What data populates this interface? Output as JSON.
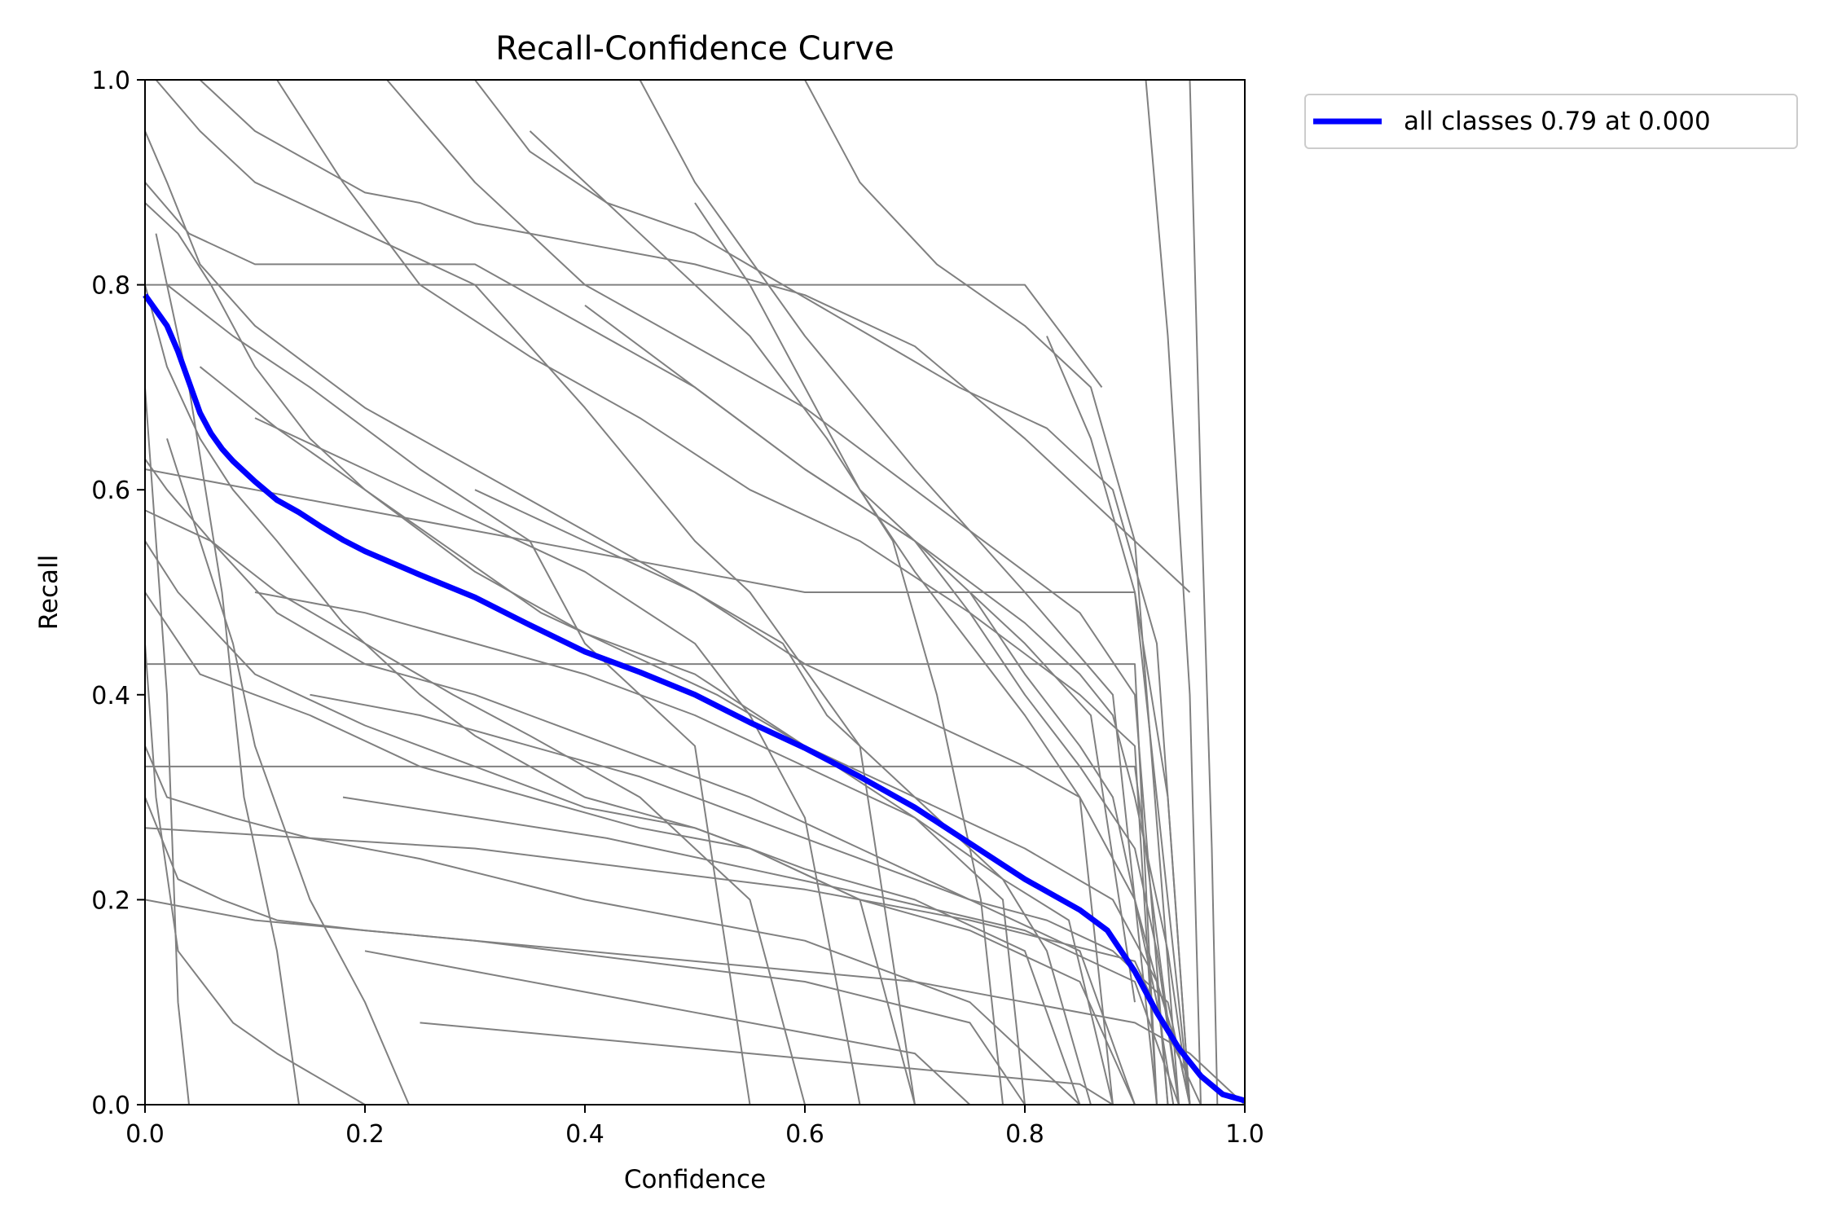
{
  "chart_data": {
    "type": "line",
    "title": "Recall-Confidence Curve",
    "xlabel": "Confidence",
    "ylabel": "Recall",
    "xlim": [
      0,
      1
    ],
    "ylim": [
      0,
      1
    ],
    "x_ticks": [
      "0.0",
      "0.2",
      "0.4",
      "0.6",
      "0.8",
      "1.0"
    ],
    "y_ticks": [
      "0.0",
      "0.2",
      "0.4",
      "0.6",
      "0.8",
      "1.0"
    ],
    "grid": false,
    "legend": {
      "placement": "outside-top-right",
      "entries": [
        "all classes 0.79 at 0.000"
      ]
    },
    "colors": {
      "per_class": "#808080",
      "all_classes": "#0000ff"
    },
    "series": [
      {
        "name": "all classes 0.79 at 0.000",
        "color": "#0000ff",
        "x": [
          0,
          0.01,
          0.02,
          0.03,
          0.04,
          0.05,
          0.06,
          0.07,
          0.08,
          0.1,
          0.12,
          0.14,
          0.16,
          0.18,
          0.2,
          0.25,
          0.3,
          0.35,
          0.4,
          0.45,
          0.5,
          0.55,
          0.6,
          0.65,
          0.7,
          0.75,
          0.8,
          0.85,
          0.875,
          0.9,
          0.92,
          0.94,
          0.96,
          0.98,
          1.0
        ],
        "y": [
          0.79,
          0.775,
          0.76,
          0.735,
          0.705,
          0.675,
          0.655,
          0.64,
          0.628,
          0.608,
          0.59,
          0.578,
          0.564,
          0.551,
          0.54,
          0.517,
          0.495,
          0.468,
          0.442,
          0.422,
          0.4,
          0.373,
          0.348,
          0.32,
          0.29,
          0.255,
          0.22,
          0.19,
          0.17,
          0.13,
          0.09,
          0.055,
          0.028,
          0.01,
          0.004
        ]
      },
      {
        "color": "#808080",
        "x": [
          0,
          0.02,
          0.05,
          0.1,
          0.2,
          0.3,
          0.4,
          0.5,
          0.6,
          0.7,
          0.8,
          0.85,
          0.9,
          0.92,
          0.94,
          0.95
        ],
        "y": [
          0.95,
          0.9,
          0.82,
          0.76,
          0.68,
          0.62,
          0.56,
          0.5,
          0.43,
          0.38,
          0.33,
          0.3,
          0.2,
          0.12,
          0.05,
          0.0
        ]
      },
      {
        "color": "#808080",
        "x": [
          0,
          0.03,
          0.06,
          0.1,
          0.15,
          0.2,
          0.3,
          0.4,
          0.5,
          0.6,
          0.7,
          0.8,
          0.88,
          0.92,
          0.93
        ],
        "y": [
          0.88,
          0.85,
          0.8,
          0.72,
          0.65,
          0.6,
          0.52,
          0.46,
          0.42,
          0.35,
          0.3,
          0.25,
          0.2,
          0.12,
          0.0
        ]
      },
      {
        "color": "#808080",
        "x": [
          0.0,
          0.02,
          0.05,
          0.08,
          0.12,
          0.18,
          0.25,
          0.3,
          0.4,
          0.5,
          0.55,
          0.65,
          0.75,
          0.85,
          0.9
        ],
        "y": [
          0.8,
          0.72,
          0.65,
          0.6,
          0.55,
          0.47,
          0.4,
          0.36,
          0.3,
          0.27,
          0.25,
          0.2,
          0.17,
          0.12,
          0.0
        ]
      },
      {
        "color": "#808080",
        "x": [
          0.0,
          0.04,
          0.1,
          0.2,
          0.3,
          0.4,
          0.5,
          0.6,
          0.7,
          0.8,
          0.86,
          0.9
        ],
        "y": [
          0.9,
          0.85,
          0.82,
          0.82,
          0.82,
          0.76,
          0.7,
          0.62,
          0.55,
          0.45,
          0.38,
          0.1
        ]
      },
      {
        "color": "#808080",
        "x": [
          0.0,
          0.02,
          0.06,
          0.12,
          0.2,
          0.3,
          0.35,
          0.45,
          0.55,
          0.65,
          0.75,
          0.82,
          0.88,
          0.93,
          0.95
        ],
        "y": [
          0.63,
          0.6,
          0.55,
          0.48,
          0.43,
          0.4,
          0.38,
          0.34,
          0.3,
          0.25,
          0.2,
          0.18,
          0.15,
          0.1,
          0.0
        ]
      },
      {
        "color": "#808080",
        "x": [
          0.0,
          0.03,
          0.1,
          0.2,
          0.3,
          0.4,
          0.5,
          0.6,
          0.7,
          0.8,
          0.85
        ],
        "y": [
          0.55,
          0.5,
          0.42,
          0.37,
          0.33,
          0.29,
          0.27,
          0.23,
          0.2,
          0.15,
          0.0
        ]
      },
      {
        "color": "#808080",
        "x": [
          0.01,
          0.05,
          0.1,
          0.2,
          0.3,
          0.4,
          0.5,
          0.55,
          0.65,
          0.7
        ],
        "y": [
          1.0,
          0.95,
          0.9,
          0.85,
          0.8,
          0.68,
          0.55,
          0.5,
          0.35,
          0.0
        ]
      },
      {
        "color": "#808080",
        "x": [
          0.05,
          0.1,
          0.15,
          0.2,
          0.25,
          0.3,
          0.4,
          0.5,
          0.6,
          0.7,
          0.8,
          0.9,
          0.95
        ],
        "y": [
          1.0,
          0.95,
          0.92,
          0.89,
          0.88,
          0.86,
          0.84,
          0.82,
          0.79,
          0.74,
          0.65,
          0.55,
          0.5
        ]
      },
      {
        "color": "#808080",
        "x": [
          0.12,
          0.18,
          0.25,
          0.35,
          0.45,
          0.55,
          0.65,
          0.75,
          0.85,
          0.9,
          0.92
        ],
        "y": [
          1.0,
          0.9,
          0.8,
          0.73,
          0.67,
          0.6,
          0.55,
          0.48,
          0.4,
          0.35,
          0.0
        ]
      },
      {
        "color": "#808080",
        "x": [
          0.22,
          0.3,
          0.4,
          0.5,
          0.6,
          0.7,
          0.8,
          0.85,
          0.9,
          0.93
        ],
        "y": [
          1.0,
          0.9,
          0.8,
          0.74,
          0.68,
          0.6,
          0.52,
          0.48,
          0.4,
          0.0
        ]
      },
      {
        "color": "#808080",
        "x": [
          0.3,
          0.35,
          0.42,
          0.5,
          0.58,
          0.66,
          0.74,
          0.82,
          0.88,
          0.92,
          0.95
        ],
        "y": [
          1.0,
          0.93,
          0.88,
          0.85,
          0.8,
          0.75,
          0.7,
          0.66,
          0.6,
          0.45,
          0.0
        ]
      },
      {
        "color": "#808080",
        "x": [
          0.45,
          0.5,
          0.6,
          0.7,
          0.8,
          0.88,
          0.92
        ],
        "y": [
          1.0,
          0.9,
          0.75,
          0.62,
          0.5,
          0.4,
          0.0
        ]
      },
      {
        "color": "#808080",
        "x": [
          0.6,
          0.65,
          0.72,
          0.8,
          0.86,
          0.9,
          0.94
        ],
        "y": [
          1.0,
          0.9,
          0.82,
          0.76,
          0.7,
          0.55,
          0.0
        ]
      },
      {
        "color": "#808080",
        "x": [
          0.91,
          0.93,
          0.95,
          0.96
        ],
        "y": [
          1.0,
          0.75,
          0.4,
          0.0
        ]
      },
      {
        "color": "#808080",
        "x": [
          0.95,
          0.96,
          0.97,
          0.975
        ],
        "y": [
          1.0,
          0.6,
          0.25,
          0.0
        ]
      },
      {
        "color": "#808080",
        "x": [
          0.0,
          0.05,
          0.15,
          0.25,
          0.35,
          0.45,
          0.55,
          0.65,
          0.7
        ],
        "y": [
          0.5,
          0.42,
          0.38,
          0.33,
          0.3,
          0.27,
          0.25,
          0.2,
          0.0
        ]
      },
      {
        "color": "#808080",
        "x": [
          0.0,
          0.02,
          0.08,
          0.15,
          0.25,
          0.4,
          0.5,
          0.6,
          0.75,
          0.85
        ],
        "y": [
          0.35,
          0.3,
          0.28,
          0.26,
          0.24,
          0.2,
          0.18,
          0.16,
          0.1,
          0.0
        ]
      },
      {
        "color": "#808080",
        "x": [
          0.0,
          0.03,
          0.07,
          0.12,
          0.2,
          0.3,
          0.45,
          0.6,
          0.75,
          0.8
        ],
        "y": [
          0.3,
          0.22,
          0.2,
          0.18,
          0.17,
          0.16,
          0.14,
          0.12,
          0.08,
          0.0
        ]
      },
      {
        "color": "#808080",
        "x": [
          0.0,
          0.01,
          0.03,
          0.08,
          0.12,
          0.2
        ],
        "y": [
          0.45,
          0.3,
          0.15,
          0.08,
          0.05,
          0.0
        ]
      },
      {
        "color": "#808080",
        "x": [
          0.0,
          0.02,
          0.03,
          0.04
        ],
        "y": [
          0.7,
          0.4,
          0.1,
          0.0
        ]
      },
      {
        "color": "#808080",
        "x": [
          0.0,
          0.06,
          0.12,
          0.2,
          0.28,
          0.35,
          0.45,
          0.55,
          0.6
        ],
        "y": [
          0.58,
          0.55,
          0.5,
          0.45,
          0.4,
          0.36,
          0.3,
          0.2,
          0.0
        ]
      },
      {
        "color": "#808080",
        "x": [
          0.02,
          0.08,
          0.15,
          0.25,
          0.35,
          0.4,
          0.5,
          0.55
        ],
        "y": [
          0.8,
          0.75,
          0.7,
          0.62,
          0.55,
          0.45,
          0.35,
          0.0
        ]
      },
      {
        "color": "#808080",
        "x": [
          0.05,
          0.12,
          0.2,
          0.28,
          0.36,
          0.44,
          0.52,
          0.6,
          0.7,
          0.78,
          0.8
        ],
        "y": [
          0.72,
          0.66,
          0.6,
          0.54,
          0.48,
          0.44,
          0.4,
          0.35,
          0.28,
          0.2,
          0.0
        ]
      },
      {
        "color": "#808080",
        "x": [
          0.1,
          0.2,
          0.3,
          0.4,
          0.5,
          0.6,
          0.7,
          0.78,
          0.84,
          0.88
        ],
        "y": [
          0.5,
          0.48,
          0.45,
          0.42,
          0.38,
          0.33,
          0.28,
          0.22,
          0.18,
          0.0
        ]
      },
      {
        "color": "#808080",
        "x": [
          0.15,
          0.25,
          0.35,
          0.45,
          0.55,
          0.65,
          0.75,
          0.85,
          0.9
        ],
        "y": [
          0.4,
          0.38,
          0.35,
          0.32,
          0.28,
          0.24,
          0.2,
          0.15,
          0.0
        ]
      },
      {
        "color": "#808080",
        "x": [
          0.18,
          0.3,
          0.42,
          0.55,
          0.68,
          0.8,
          0.9,
          0.94
        ],
        "y": [
          0.3,
          0.28,
          0.26,
          0.23,
          0.2,
          0.17,
          0.12,
          0.0
        ]
      },
      {
        "color": "#808080",
        "x": [
          0.2,
          0.3,
          0.4,
          0.5,
          0.6,
          0.7,
          0.75
        ],
        "y": [
          0.15,
          0.13,
          0.11,
          0.09,
          0.07,
          0.05,
          0.0
        ]
      },
      {
        "color": "#808080",
        "x": [
          0.25,
          0.35,
          0.45,
          0.55,
          0.65,
          0.75,
          0.85,
          0.88
        ],
        "y": [
          0.08,
          0.07,
          0.06,
          0.05,
          0.04,
          0.03,
          0.02,
          0.0
        ]
      },
      {
        "color": "#808080",
        "x": [
          0.0,
          0.05,
          0.1,
          0.2,
          0.3,
          0.4,
          0.5,
          0.6,
          0.7,
          0.8,
          0.9,
          0.95,
          1.0
        ],
        "y": [
          0.2,
          0.19,
          0.18,
          0.17,
          0.16,
          0.15,
          0.14,
          0.13,
          0.12,
          0.1,
          0.08,
          0.05,
          0.0
        ]
      },
      {
        "color": "#808080",
        "x": [
          0.0,
          0.1,
          0.2,
          0.3,
          0.4,
          0.5,
          0.6,
          0.7,
          0.8,
          0.9,
          0.95
        ],
        "y": [
          0.62,
          0.6,
          0.58,
          0.56,
          0.54,
          0.52,
          0.5,
          0.5,
          0.5,
          0.5,
          0.0
        ]
      },
      {
        "color": "#808080",
        "x": [
          0.0,
          0.1,
          0.2,
          0.3,
          0.4,
          0.5,
          0.6,
          0.7,
          0.8,
          0.9,
          0.94
        ],
        "y": [
          0.33,
          0.33,
          0.33,
          0.33,
          0.33,
          0.33,
          0.33,
          0.33,
          0.33,
          0.33,
          0.0
        ]
      },
      {
        "color": "#808080",
        "x": [
          0.0,
          0.2,
          0.4,
          0.6,
          0.8,
          0.9,
          0.92
        ],
        "y": [
          0.43,
          0.43,
          0.43,
          0.43,
          0.43,
          0.43,
          0.0
        ]
      },
      {
        "color": "#808080",
        "x": [
          0.0,
          0.2,
          0.4,
          0.6,
          0.8,
          0.87
        ],
        "y": [
          0.8,
          0.8,
          0.8,
          0.8,
          0.8,
          0.7
        ]
      },
      {
        "color": "#808080",
        "x": [
          0.4,
          0.5,
          0.6,
          0.7,
          0.8,
          0.85,
          0.88,
          0.9,
          0.93,
          0.95
        ],
        "y": [
          0.78,
          0.7,
          0.62,
          0.55,
          0.47,
          0.42,
          0.38,
          0.3,
          0.15,
          0.0
        ]
      },
      {
        "color": "#808080",
        "x": [
          0.5,
          0.55,
          0.6,
          0.65,
          0.7,
          0.75,
          0.8,
          0.85,
          0.88
        ],
        "y": [
          0.88,
          0.8,
          0.7,
          0.6,
          0.52,
          0.45,
          0.38,
          0.3,
          0.0
        ]
      },
      {
        "color": "#808080",
        "x": [
          0.65,
          0.7,
          0.75,
          0.8,
          0.85,
          0.9,
          0.92,
          0.94
        ],
        "y": [
          0.6,
          0.55,
          0.48,
          0.4,
          0.33,
          0.25,
          0.15,
          0.0
        ]
      },
      {
        "color": "#808080",
        "x": [
          0.75,
          0.8,
          0.85,
          0.88,
          0.9,
          0.92,
          0.935
        ],
        "y": [
          0.5,
          0.42,
          0.35,
          0.3,
          0.2,
          0.1,
          0.0
        ]
      },
      {
        "color": "#808080",
        "x": [
          0.82,
          0.86,
          0.9,
          0.93,
          0.95
        ],
        "y": [
          0.75,
          0.65,
          0.5,
          0.3,
          0.0
        ]
      },
      {
        "color": "#808080",
        "x": [
          0.3,
          0.4,
          0.5,
          0.58,
          0.62,
          0.7,
          0.78,
          0.82,
          0.86
        ],
        "y": [
          0.6,
          0.55,
          0.5,
          0.45,
          0.38,
          0.3,
          0.22,
          0.15,
          0.0
        ]
      },
      {
        "color": "#808080",
        "x": [
          0.02,
          0.05,
          0.08,
          0.1,
          0.15,
          0.2,
          0.24
        ],
        "y": [
          0.65,
          0.55,
          0.45,
          0.35,
          0.2,
          0.1,
          0.0
        ]
      },
      {
        "color": "#808080",
        "x": [
          0.01,
          0.04,
          0.07,
          0.09,
          0.12,
          0.14
        ],
        "y": [
          0.85,
          0.7,
          0.5,
          0.3,
          0.15,
          0.0
        ]
      },
      {
        "color": "#808080",
        "x": [
          0.0,
          0.15,
          0.3,
          0.45,
          0.6,
          0.75,
          0.9,
          0.96
        ],
        "y": [
          0.27,
          0.26,
          0.25,
          0.23,
          0.21,
          0.18,
          0.14,
          0.0
        ]
      },
      {
        "color": "#808080",
        "x": [
          0.35,
          0.45,
          0.55,
          0.62,
          0.68,
          0.72,
          0.76,
          0.78
        ],
        "y": [
          0.95,
          0.85,
          0.75,
          0.65,
          0.55,
          0.4,
          0.2,
          0.0
        ]
      },
      {
        "color": "#808080",
        "x": [
          0.1,
          0.2,
          0.3,
          0.4,
          0.5,
          0.55,
          0.6,
          0.65
        ],
        "y": [
          0.67,
          0.62,
          0.57,
          0.52,
          0.45,
          0.38,
          0.28,
          0.0
        ]
      }
    ]
  }
}
